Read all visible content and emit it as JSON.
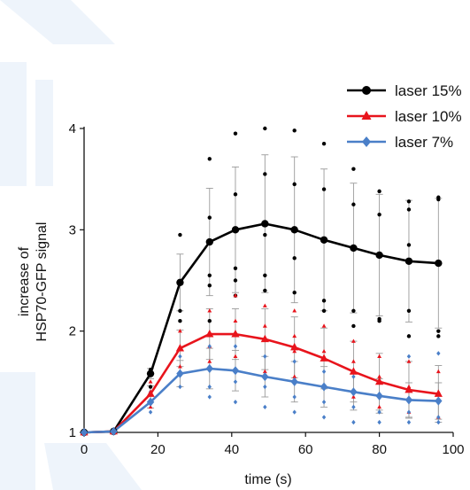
{
  "chart_data": {
    "type": "line",
    "title": "",
    "xlabel": "time (s)",
    "ylabel": [
      "increase of",
      "HSP70-GFP signal"
    ],
    "xlim": [
      0,
      100
    ],
    "ylim": [
      1,
      4
    ],
    "xticks": [
      0,
      20,
      40,
      60,
      80,
      100
    ],
    "yticks": [
      1,
      2,
      3,
      4
    ],
    "legend_position": "top-right",
    "x": [
      0,
      8,
      18,
      26,
      34,
      41,
      49,
      57,
      65,
      73,
      80,
      88,
      96
    ],
    "series": [
      {
        "name": "laser 15%",
        "color": "#000000",
        "marker": "circle",
        "values": [
          1.0,
          1.01,
          1.58,
          2.48,
          2.88,
          3.0,
          3.06,
          3.0,
          2.9,
          2.82,
          2.75,
          2.69,
          2.67
        ],
        "errors": [
          0,
          0,
          0.05,
          0.28,
          0.53,
          0.62,
          0.68,
          0.72,
          0.7,
          0.64,
          0.6,
          0.6,
          0.64
        ],
        "points": [
          [
            18,
            1.45
          ],
          [
            18,
            1.62
          ],
          [
            26,
            2.95
          ],
          [
            26,
            2.2
          ],
          [
            26,
            2.1
          ],
          [
            34,
            3.7
          ],
          [
            34,
            3.12
          ],
          [
            34,
            2.55
          ],
          [
            34,
            2.45
          ],
          [
            34,
            2.1
          ],
          [
            41,
            3.95
          ],
          [
            41,
            3.35
          ],
          [
            41,
            2.62
          ],
          [
            41,
            2.5
          ],
          [
            41,
            2.35
          ],
          [
            49,
            4.0
          ],
          [
            49,
            3.55
          ],
          [
            49,
            2.95
          ],
          [
            49,
            2.55
          ],
          [
            49,
            2.4
          ],
          [
            57,
            3.98
          ],
          [
            57,
            3.45
          ],
          [
            57,
            2.72
          ],
          [
            57,
            2.38
          ],
          [
            65,
            3.85
          ],
          [
            65,
            3.4
          ],
          [
            65,
            2.3
          ],
          [
            65,
            2.2
          ],
          [
            73,
            3.6
          ],
          [
            73,
            3.25
          ],
          [
            73,
            2.2
          ],
          [
            73,
            2.05
          ],
          [
            80,
            3.38
          ],
          [
            80,
            3.15
          ],
          [
            80,
            2.12
          ],
          [
            80,
            2.1
          ],
          [
            88,
            3.28
          ],
          [
            88,
            3.2
          ],
          [
            88,
            2.85
          ],
          [
            88,
            1.95
          ],
          [
            88,
            2.2
          ],
          [
            96,
            3.32
          ],
          [
            96,
            3.3
          ],
          [
            96,
            2.0
          ],
          [
            96,
            1.95
          ]
        ]
      },
      {
        "name": "laser 10%",
        "color": "#e8141c",
        "marker": "triangle",
        "values": [
          1.0,
          1.01,
          1.38,
          1.83,
          1.97,
          1.97,
          1.92,
          1.84,
          1.73,
          1.6,
          1.5,
          1.42,
          1.38
        ],
        "errors": [
          0,
          0,
          0.08,
          0.18,
          0.25,
          0.25,
          0.3,
          0.3,
          0.3,
          0.3,
          0.28,
          0.28,
          0.28
        ],
        "points": [
          [
            18,
            1.25
          ],
          [
            18,
            1.5
          ],
          [
            26,
            2.0
          ],
          [
            26,
            1.65
          ],
          [
            34,
            2.2
          ],
          [
            34,
            1.85
          ],
          [
            34,
            1.7
          ],
          [
            41,
            2.35
          ],
          [
            41,
            2.1
          ],
          [
            41,
            1.75
          ],
          [
            49,
            2.25
          ],
          [
            49,
            2.05
          ],
          [
            49,
            1.6
          ],
          [
            57,
            2.2
          ],
          [
            57,
            1.95
          ],
          [
            57,
            1.8
          ],
          [
            57,
            1.55
          ],
          [
            65,
            2.05
          ],
          [
            65,
            1.8
          ],
          [
            65,
            1.45
          ],
          [
            73,
            1.9
          ],
          [
            73,
            1.7
          ],
          [
            73,
            1.35
          ],
          [
            80,
            1.75
          ],
          [
            80,
            1.55
          ],
          [
            80,
            1.25
          ],
          [
            88,
            1.7
          ],
          [
            88,
            1.45
          ],
          [
            88,
            1.2
          ],
          [
            96,
            1.6
          ],
          [
            96,
            1.4
          ],
          [
            96,
            1.15
          ]
        ]
      },
      {
        "name": "laser 7%",
        "color": "#4a7fc8",
        "marker": "diamond",
        "values": [
          1.0,
          1.01,
          1.3,
          1.58,
          1.63,
          1.61,
          1.55,
          1.5,
          1.45,
          1.4,
          1.36,
          1.32,
          1.31
        ],
        "errors": [
          0,
          0,
          0.06,
          0.13,
          0.2,
          0.2,
          0.2,
          0.2,
          0.2,
          0.18,
          0.17,
          0.17,
          0.18
        ],
        "points": [
          [
            18,
            1.2
          ],
          [
            18,
            1.4
          ],
          [
            26,
            1.75
          ],
          [
            26,
            1.45
          ],
          [
            34,
            1.85
          ],
          [
            34,
            1.45
          ],
          [
            34,
            1.35
          ],
          [
            41,
            1.85
          ],
          [
            41,
            1.5
          ],
          [
            41,
            1.3
          ],
          [
            49,
            1.75
          ],
          [
            49,
            1.45
          ],
          [
            49,
            1.25
          ],
          [
            57,
            1.7
          ],
          [
            57,
            1.35
          ],
          [
            57,
            1.2
          ],
          [
            65,
            1.6
          ],
          [
            65,
            1.3
          ],
          [
            65,
            1.15
          ],
          [
            73,
            1.55
          ],
          [
            73,
            1.25
          ],
          [
            73,
            1.1
          ],
          [
            80,
            1.5
          ],
          [
            80,
            1.2
          ],
          [
            80,
            1.1
          ],
          [
            88,
            1.75
          ],
          [
            88,
            1.2
          ],
          [
            88,
            1.1
          ],
          [
            96,
            1.78
          ],
          [
            96,
            1.15
          ],
          [
            96,
            1.1
          ]
        ]
      }
    ]
  }
}
